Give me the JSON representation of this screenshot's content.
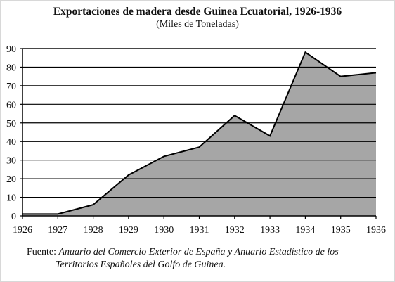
{
  "chart_data": {
    "type": "area",
    "title": "Exportaciones de madera desde Guinea Ecuatorial, 1926-1936",
    "subtitle": "(Miles de Toneladas)",
    "xlabel": "",
    "ylabel": "",
    "x": [
      1926,
      1927,
      1928,
      1929,
      1930,
      1931,
      1932,
      1933,
      1934,
      1935,
      1936
    ],
    "values": [
      1,
      1,
      6,
      22,
      32,
      37,
      54,
      43,
      88,
      75,
      77
    ],
    "xlim": [
      1926,
      1936
    ],
    "ylim": [
      0,
      90
    ],
    "yticks": [
      0,
      10,
      20,
      30,
      40,
      50,
      60,
      70,
      80,
      90
    ],
    "xticks": [
      "1926",
      "1927",
      "1928",
      "1929",
      "1930",
      "1931",
      "1932",
      "1933",
      "1934",
      "1935",
      "1936"
    ],
    "grid": true,
    "colors": {
      "fill": "#a6a6a6",
      "line": "#000000",
      "grid": "#000000"
    }
  },
  "source": {
    "label": "Fuente:",
    "line1": "Anuario del Comercio Exterior de España y Anuario Estadístico de los",
    "line2": "Territorios Españoles del Golfo de Guinea."
  }
}
